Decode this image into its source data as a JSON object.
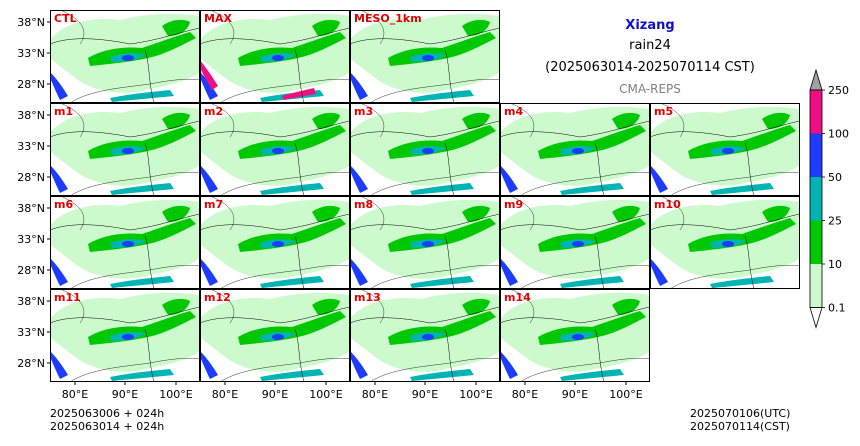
{
  "header": {
    "region": "Xizang",
    "variable": "rain24",
    "period": "(2025063014-2025070114 CST)",
    "source": "CMA-REPS"
  },
  "axes": {
    "lat_labels": [
      "38°N",
      "33°N",
      "28°N"
    ],
    "lon_labels": [
      "80°E",
      "90°E",
      "100°E"
    ]
  },
  "panels": [
    {
      "label": "CTL",
      "row": 0,
      "col": 0
    },
    {
      "label": "MAX",
      "row": 0,
      "col": 1
    },
    {
      "label": "MESO_1km",
      "row": 0,
      "col": 2
    },
    {
      "label": "m1",
      "row": 1,
      "col": 0
    },
    {
      "label": "m2",
      "row": 1,
      "col": 1
    },
    {
      "label": "m3",
      "row": 1,
      "col": 2
    },
    {
      "label": "m4",
      "row": 1,
      "col": 3
    },
    {
      "label": "m5",
      "row": 1,
      "col": 4
    },
    {
      "label": "m6",
      "row": 2,
      "col": 0
    },
    {
      "label": "m7",
      "row": 2,
      "col": 1
    },
    {
      "label": "m8",
      "row": 2,
      "col": 2
    },
    {
      "label": "m9",
      "row": 2,
      "col": 3
    },
    {
      "label": "m10",
      "row": 2,
      "col": 4
    },
    {
      "label": "m11",
      "row": 3,
      "col": 0
    },
    {
      "label": "m12",
      "row": 3,
      "col": 1
    },
    {
      "label": "m13",
      "row": 3,
      "col": 2
    },
    {
      "label": "m14",
      "row": 3,
      "col": 3
    }
  ],
  "colorbar": {
    "levels": [
      "0.1",
      "10",
      "25",
      "50",
      "100",
      "250"
    ],
    "colors": [
      "#ccfacc",
      "#00c800",
      "#00b4b4",
      "#1e3cff",
      "#f00f82",
      "#a0a0a0"
    ]
  },
  "colors": {
    "panel_label": "#e00000",
    "title_region": "#1010c8",
    "source_text": "#808080",
    "land": "#ccfacc",
    "rain_10": "#00c800",
    "rain_25": "#00b4b4",
    "rain_50": "#1e3cff",
    "rain_100": "#f00f82"
  },
  "footer": {
    "init_line_1": "2025063006  +  024h",
    "init_line_2": "2025063014  +  024h",
    "valid_utc": "2025070106(UTC)",
    "valid_cst": "2025070114(CST)"
  }
}
